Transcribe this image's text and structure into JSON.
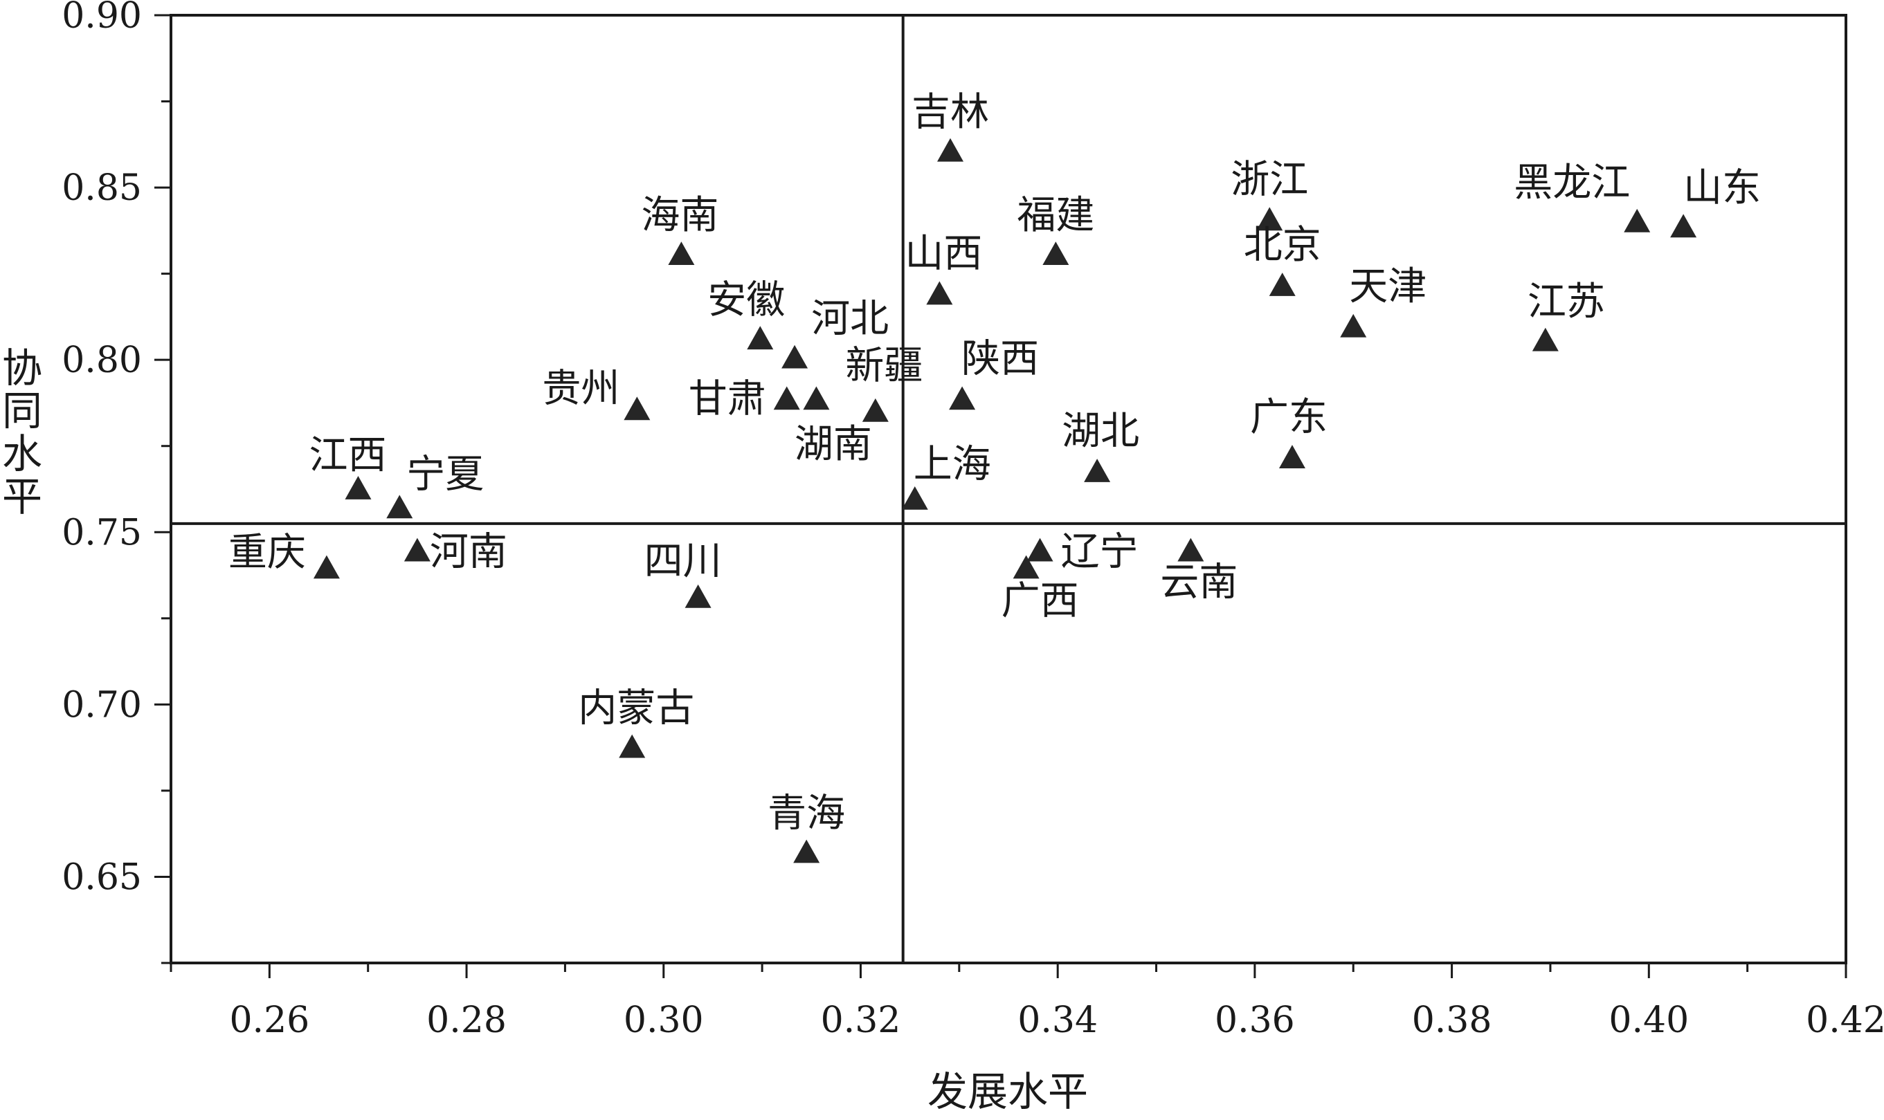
{
  "chart_data": {
    "type": "scatter",
    "xlabel": "发展水平",
    "ylabel": "协同水平",
    "xlim": [
      0.25,
      0.42
    ],
    "ylim": [
      0.625,
      0.9
    ],
    "xticks": [
      0.26,
      0.28,
      0.3,
      0.32,
      0.34,
      0.36,
      0.38,
      0.4,
      0.42
    ],
    "yticks": [
      0.65,
      0.7,
      0.75,
      0.8,
      0.85,
      0.9
    ],
    "xtick_labels": [
      "0.26",
      "0.28",
      "0.30",
      "0.32",
      "0.34",
      "0.36",
      "0.38",
      "0.40",
      "0.42"
    ],
    "ytick_labels": [
      "0.65",
      "0.70",
      "0.75",
      "0.80",
      "0.85",
      "0.90"
    ],
    "reference_lines": {
      "x": 0.3243,
      "y": 0.7525
    },
    "marker": "filled-triangle",
    "marker_color": "#262626",
    "grid": false,
    "points": [
      {
        "label": "吉林",
        "x": 0.3291,
        "y": 0.8605
      },
      {
        "label": "海南",
        "x": 0.3018,
        "y": 0.8305
      },
      {
        "label": "福建",
        "x": 0.3398,
        "y": 0.8305
      },
      {
        "label": "浙江",
        "x": 0.3615,
        "y": 0.8405
      },
      {
        "label": "黑龙江",
        "x": 0.3988,
        "y": 0.84
      },
      {
        "label": "山东",
        "x": 0.4035,
        "y": 0.8385
      },
      {
        "label": "北京",
        "x": 0.3628,
        "y": 0.8215
      },
      {
        "label": "山西",
        "x": 0.328,
        "y": 0.819
      },
      {
        "label": "天津",
        "x": 0.37,
        "y": 0.8095
      },
      {
        "label": "江苏",
        "x": 0.3895,
        "y": 0.8055
      },
      {
        "label": "安徽",
        "x": 0.3098,
        "y": 0.806
      },
      {
        "label": "河北",
        "x": 0.3133,
        "y": 0.8005
      },
      {
        "label": "陕西",
        "x": 0.3303,
        "y": 0.7885
      },
      {
        "label": "甘肃",
        "x": 0.3125,
        "y": 0.7885
      },
      {
        "label": "新疆",
        "x": 0.3155,
        "y": 0.7885
      },
      {
        "label": "湖南",
        "x": 0.3215,
        "y": 0.785
      },
      {
        "label": "贵州",
        "x": 0.2973,
        "y": 0.7855
      },
      {
        "label": "广东",
        "x": 0.3638,
        "y": 0.7715
      },
      {
        "label": "湖北",
        "x": 0.344,
        "y": 0.7675
      },
      {
        "label": "江西",
        "x": 0.269,
        "y": 0.7625
      },
      {
        "label": "宁夏",
        "x": 0.2732,
        "y": 0.757
      },
      {
        "label": "上海",
        "x": 0.3255,
        "y": 0.7595
      },
      {
        "label": "重庆",
        "x": 0.2658,
        "y": 0.7395
      },
      {
        "label": "河南",
        "x": 0.275,
        "y": 0.7445
      },
      {
        "label": "辽宁",
        "x": 0.3382,
        "y": 0.7445
      },
      {
        "label": "广西",
        "x": 0.3368,
        "y": 0.7395
      },
      {
        "label": "云南",
        "x": 0.3535,
        "y": 0.7445
      },
      {
        "label": "四川",
        "x": 0.3035,
        "y": 0.731
      },
      {
        "label": "内蒙古",
        "x": 0.2968,
        "y": 0.6875
      },
      {
        "label": "青海",
        "x": 0.3145,
        "y": 0.657
      }
    ]
  }
}
